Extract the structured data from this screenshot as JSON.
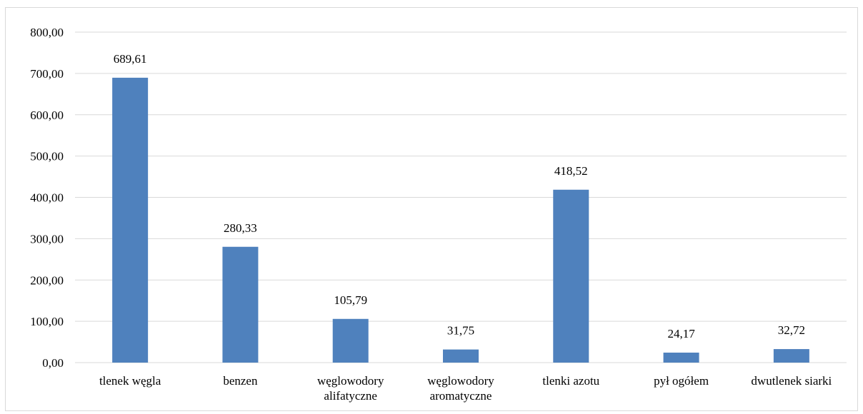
{
  "chart_data": {
    "type": "bar",
    "title": "",
    "xlabel": "",
    "ylabel": "",
    "ylim": [
      0,
      800
    ],
    "y_ticks": [
      "0,00",
      "100,00",
      "200,00",
      "300,00",
      "400,00",
      "500,00",
      "600,00",
      "700,00",
      "800,00"
    ],
    "categories": [
      [
        "tlenek węgla"
      ],
      [
        "benzen"
      ],
      [
        "węglowodory",
        "alifatyczne"
      ],
      [
        "węglowodory",
        "aromatyczne"
      ],
      [
        "tlenki azotu"
      ],
      [
        "pył ogółem"
      ],
      [
        "dwutlenek siarki"
      ]
    ],
    "values": [
      689.61,
      280.33,
      105.79,
      31.75,
      418.52,
      24.17,
      32.72
    ],
    "value_labels": [
      "689,61",
      "280,33",
      "105,79",
      "31,75",
      "418,52",
      "24,17",
      "32,72"
    ],
    "bar_color": "#4f81bd",
    "grid_color": "#d9d9d9",
    "grid": true,
    "legend": "none"
  }
}
